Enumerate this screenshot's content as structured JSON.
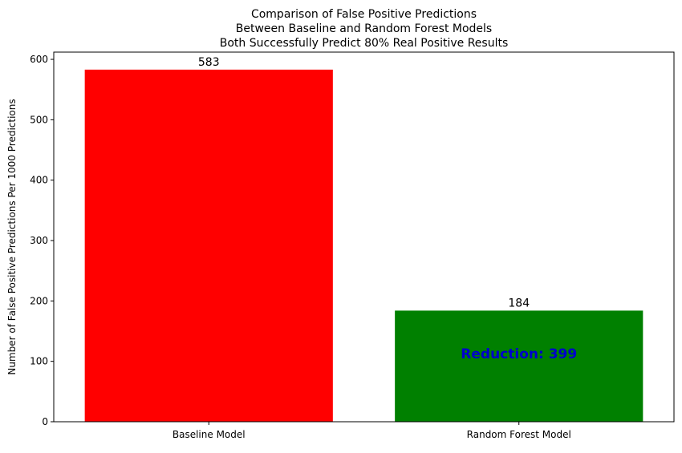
{
  "chart_data": {
    "type": "bar",
    "title_lines": [
      "Comparison of False Positive Predictions",
      "Between Baseline and Random Forest Models",
      "Both Successfully Predict 80% Real Positive Results"
    ],
    "xlabel": "",
    "ylabel": "Number of False Positive Predictions Per 1000 Predictions",
    "categories": [
      "Baseline Model",
      "Random Forest Model"
    ],
    "values": [
      583,
      184
    ],
    "value_labels": [
      "583",
      "184"
    ],
    "bar_colors": [
      "#ff0000",
      "#008000"
    ],
    "ylim": [
      0,
      612
    ],
    "yticks": [
      0,
      100,
      200,
      300,
      400,
      500,
      600
    ],
    "grid": false,
    "annotation": {
      "text": "Reduction: 399",
      "x_category": "Random Forest Model",
      "y": 113,
      "color": "#0000cc"
    }
  }
}
